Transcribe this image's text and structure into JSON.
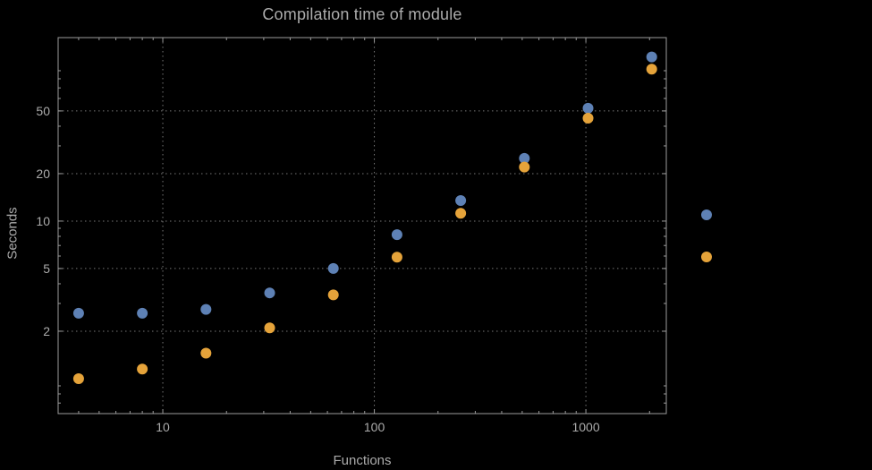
{
  "chart_data": {
    "type": "scatter",
    "title": "Compilation time of module",
    "xlabel": "Functions",
    "ylabel": "Seconds",
    "x_scale": "log",
    "y_scale": "log",
    "x": [
      4,
      8,
      16,
      32,
      64,
      128,
      256,
      512,
      1024,
      2048
    ],
    "series": [
      {
        "name": "",
        "color": "#5e81b5",
        "values": [
          2.6,
          2.6,
          2.75,
          3.5,
          5.0,
          8.2,
          13.5,
          25,
          52,
          110
        ]
      },
      {
        "name": "",
        "color": "#e5a33a",
        "values": [
          1.0,
          1.15,
          1.45,
          2.1,
          3.4,
          5.9,
          11.2,
          22,
          45,
          92
        ]
      }
    ],
    "x_ticks": [
      10,
      100,
      1000
    ],
    "y_ticks": [
      2,
      5,
      10,
      20,
      50
    ],
    "x_range": [
      3.2,
      2400
    ],
    "y_range": [
      0.6,
      146
    ],
    "grid": "dotted",
    "legend_position": "right",
    "legend": {
      "entries": [
        {
          "label": "",
          "color": "#5e81b5"
        },
        {
          "label": "",
          "color": "#e5a33a"
        }
      ]
    },
    "background": "#000000",
    "frame_color": "#9b9b9b",
    "grid_color": "#767676",
    "text_color": "#ababab"
  }
}
